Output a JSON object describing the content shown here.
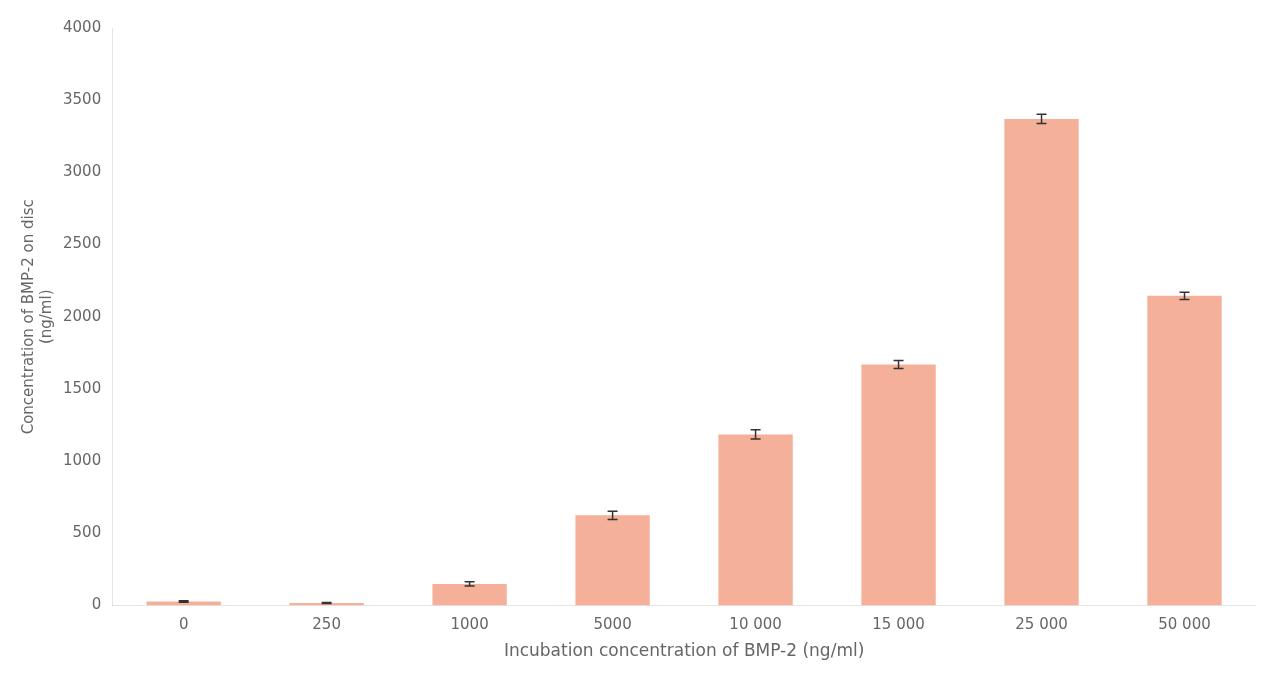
{
  "chart_data": {
    "type": "bar",
    "categories": [
      "0",
      "250",
      "1000",
      "5000",
      "10 000",
      "15 000",
      "25 000",
      "50 000"
    ],
    "values": [
      28,
      18,
      150,
      625,
      1185,
      1670,
      3370,
      2145
    ],
    "errors": [
      5,
      3,
      15,
      28,
      32,
      28,
      32,
      25
    ],
    "color": "#F5B09A",
    "xlabel": "Incubation concentration of BMP-2 (ng/ml)",
    "ylabel": "Concentration of BMP-2 on disc\n(ng/ml)",
    "ylim": [
      0,
      4000
    ],
    "yticks": [
      0,
      500,
      1000,
      1500,
      2000,
      2500,
      3000,
      3500,
      4000
    ],
    "grid": false
  }
}
